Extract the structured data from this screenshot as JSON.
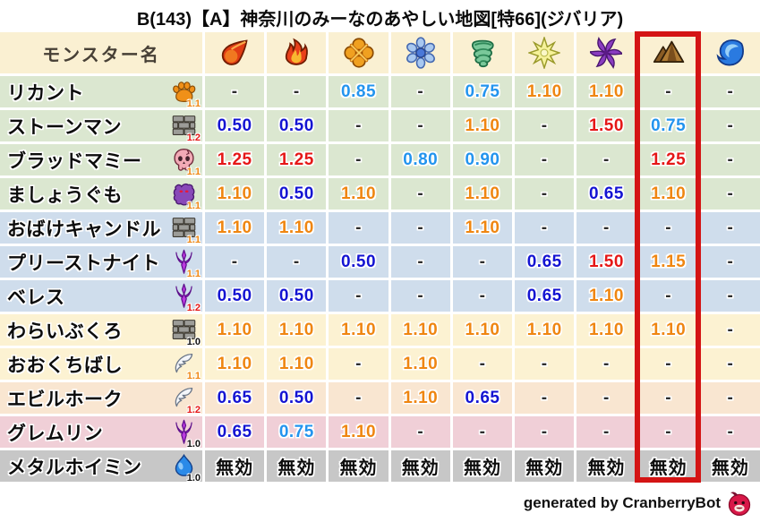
{
  "title": "B(143)【A】神奈川のみーなのあやしい地図[特66](ジバリア)",
  "chart_data": {
    "type": "table",
    "title": "B(143)【A】神奈川のみーなのあやしい地図[特66](ジバリア)",
    "name_column_header": "モンスター名",
    "element_columns": [
      {
        "id": "fire",
        "icon": "fire-icon"
      },
      {
        "id": "flame",
        "icon": "flame-icon"
      },
      {
        "id": "bang",
        "icon": "bang-icon"
      },
      {
        "id": "ice",
        "icon": "ice-icon"
      },
      {
        "id": "wind",
        "icon": "wind-icon"
      },
      {
        "id": "thunder",
        "icon": "thunder-icon"
      },
      {
        "id": "dark",
        "icon": "dark-icon"
      },
      {
        "id": "earth",
        "icon": "earth-icon"
      },
      {
        "id": "water",
        "icon": "water-icon"
      }
    ],
    "highlighted_column_id": "earth",
    "rows": [
      {
        "name": "リカント",
        "family_icon": "paw-icon",
        "multiplier": "1.1",
        "bg": "row_green",
        "values": [
          "-",
          "-",
          "0.85",
          "-",
          "0.75",
          "1.10",
          "1.10",
          "-",
          "-"
        ]
      },
      {
        "name": "ストーンマン",
        "family_icon": "brick-icon",
        "multiplier": "1.2",
        "bg": "row_green",
        "values": [
          "0.50",
          "0.50",
          "-",
          "-",
          "1.10",
          "-",
          "1.50",
          "0.75",
          "-"
        ]
      },
      {
        "name": "ブラッドマミー",
        "family_icon": "skull-icon",
        "multiplier": "1.1",
        "bg": "row_green",
        "values": [
          "1.25",
          "1.25",
          "-",
          "0.80",
          "0.90",
          "-",
          "-",
          "1.25",
          "-"
        ]
      },
      {
        "name": "ましょうぐも",
        "family_icon": "spider-icon",
        "multiplier": "1.1",
        "bg": "row_green",
        "values": [
          "1.10",
          "0.50",
          "1.10",
          "-",
          "1.10",
          "-",
          "0.65",
          "1.10",
          "-"
        ]
      },
      {
        "name": "おばけキャンドル",
        "family_icon": "brick-icon",
        "multiplier": "1.1",
        "bg": "row_blue",
        "values": [
          "1.10",
          "1.10",
          "-",
          "-",
          "1.10",
          "-",
          "-",
          "-",
          "-"
        ]
      },
      {
        "name": "プリーストナイト",
        "family_icon": "trident-icon",
        "multiplier": "1.1",
        "bg": "row_blue",
        "values": [
          "-",
          "-",
          "0.50",
          "-",
          "-",
          "0.65",
          "1.50",
          "1.15",
          "-"
        ]
      },
      {
        "name": "ベレス",
        "family_icon": "trident-icon",
        "multiplier": "1.2",
        "bg": "row_blue",
        "values": [
          "0.50",
          "0.50",
          "-",
          "-",
          "-",
          "0.65",
          "1.10",
          "-",
          "-"
        ]
      },
      {
        "name": "わらいぶくろ",
        "family_icon": "brick-icon",
        "multiplier": "1.0",
        "bg": "row_cream",
        "values": [
          "1.10",
          "1.10",
          "1.10",
          "1.10",
          "1.10",
          "1.10",
          "1.10",
          "1.10",
          "-"
        ]
      },
      {
        "name": "おおくちばし",
        "family_icon": "wing-icon",
        "multiplier": "1.1",
        "bg": "row_cream",
        "values": [
          "1.10",
          "1.10",
          "-",
          "1.10",
          "-",
          "-",
          "-",
          "-",
          "-"
        ]
      },
      {
        "name": "エビルホーク",
        "family_icon": "wing-icon",
        "multiplier": "1.2",
        "bg": "row_peach",
        "values": [
          "0.65",
          "0.50",
          "-",
          "1.10",
          "0.65",
          "-",
          "-",
          "-",
          "-"
        ]
      },
      {
        "name": "グレムリン",
        "family_icon": "trident-icon",
        "multiplier": "1.0",
        "bg": "row_pink",
        "values": [
          "0.65",
          "0.75",
          "1.10",
          "-",
          "-",
          "-",
          "-",
          "-",
          "-"
        ]
      },
      {
        "name": "メタルホイミン",
        "family_icon": "slime-icon",
        "multiplier": "1.0",
        "bg": "row_gray",
        "values": [
          "無効",
          "無効",
          "無効",
          "無効",
          "無効",
          "無効",
          "無効",
          "無効",
          "無効"
        ]
      }
    ]
  },
  "footer": {
    "credit": "generated by CranberryBot",
    "icon": "cranberry-icon"
  },
  "colors": {
    "header_bg": "#faf0d2",
    "row_green": "#dbe7d0",
    "row_blue": "#cfddec",
    "row_cream": "#fcf2d2",
    "row_peach": "#f9e6d1",
    "row_pink": "#f0cfd7",
    "row_gray": "#c7c7c7",
    "value_deep_blue": "#1414d2",
    "value_light_blue": "#2394ee",
    "value_orange": "#ef8611",
    "value_red": "#e51717",
    "dash": "#2e2e2e",
    "nullified_text": "#0d0d0d",
    "highlight_box": "#d41414",
    "mult_black": "#101010",
    "mult_orange": "#ef8611",
    "mult_red": "#e51717"
  }
}
